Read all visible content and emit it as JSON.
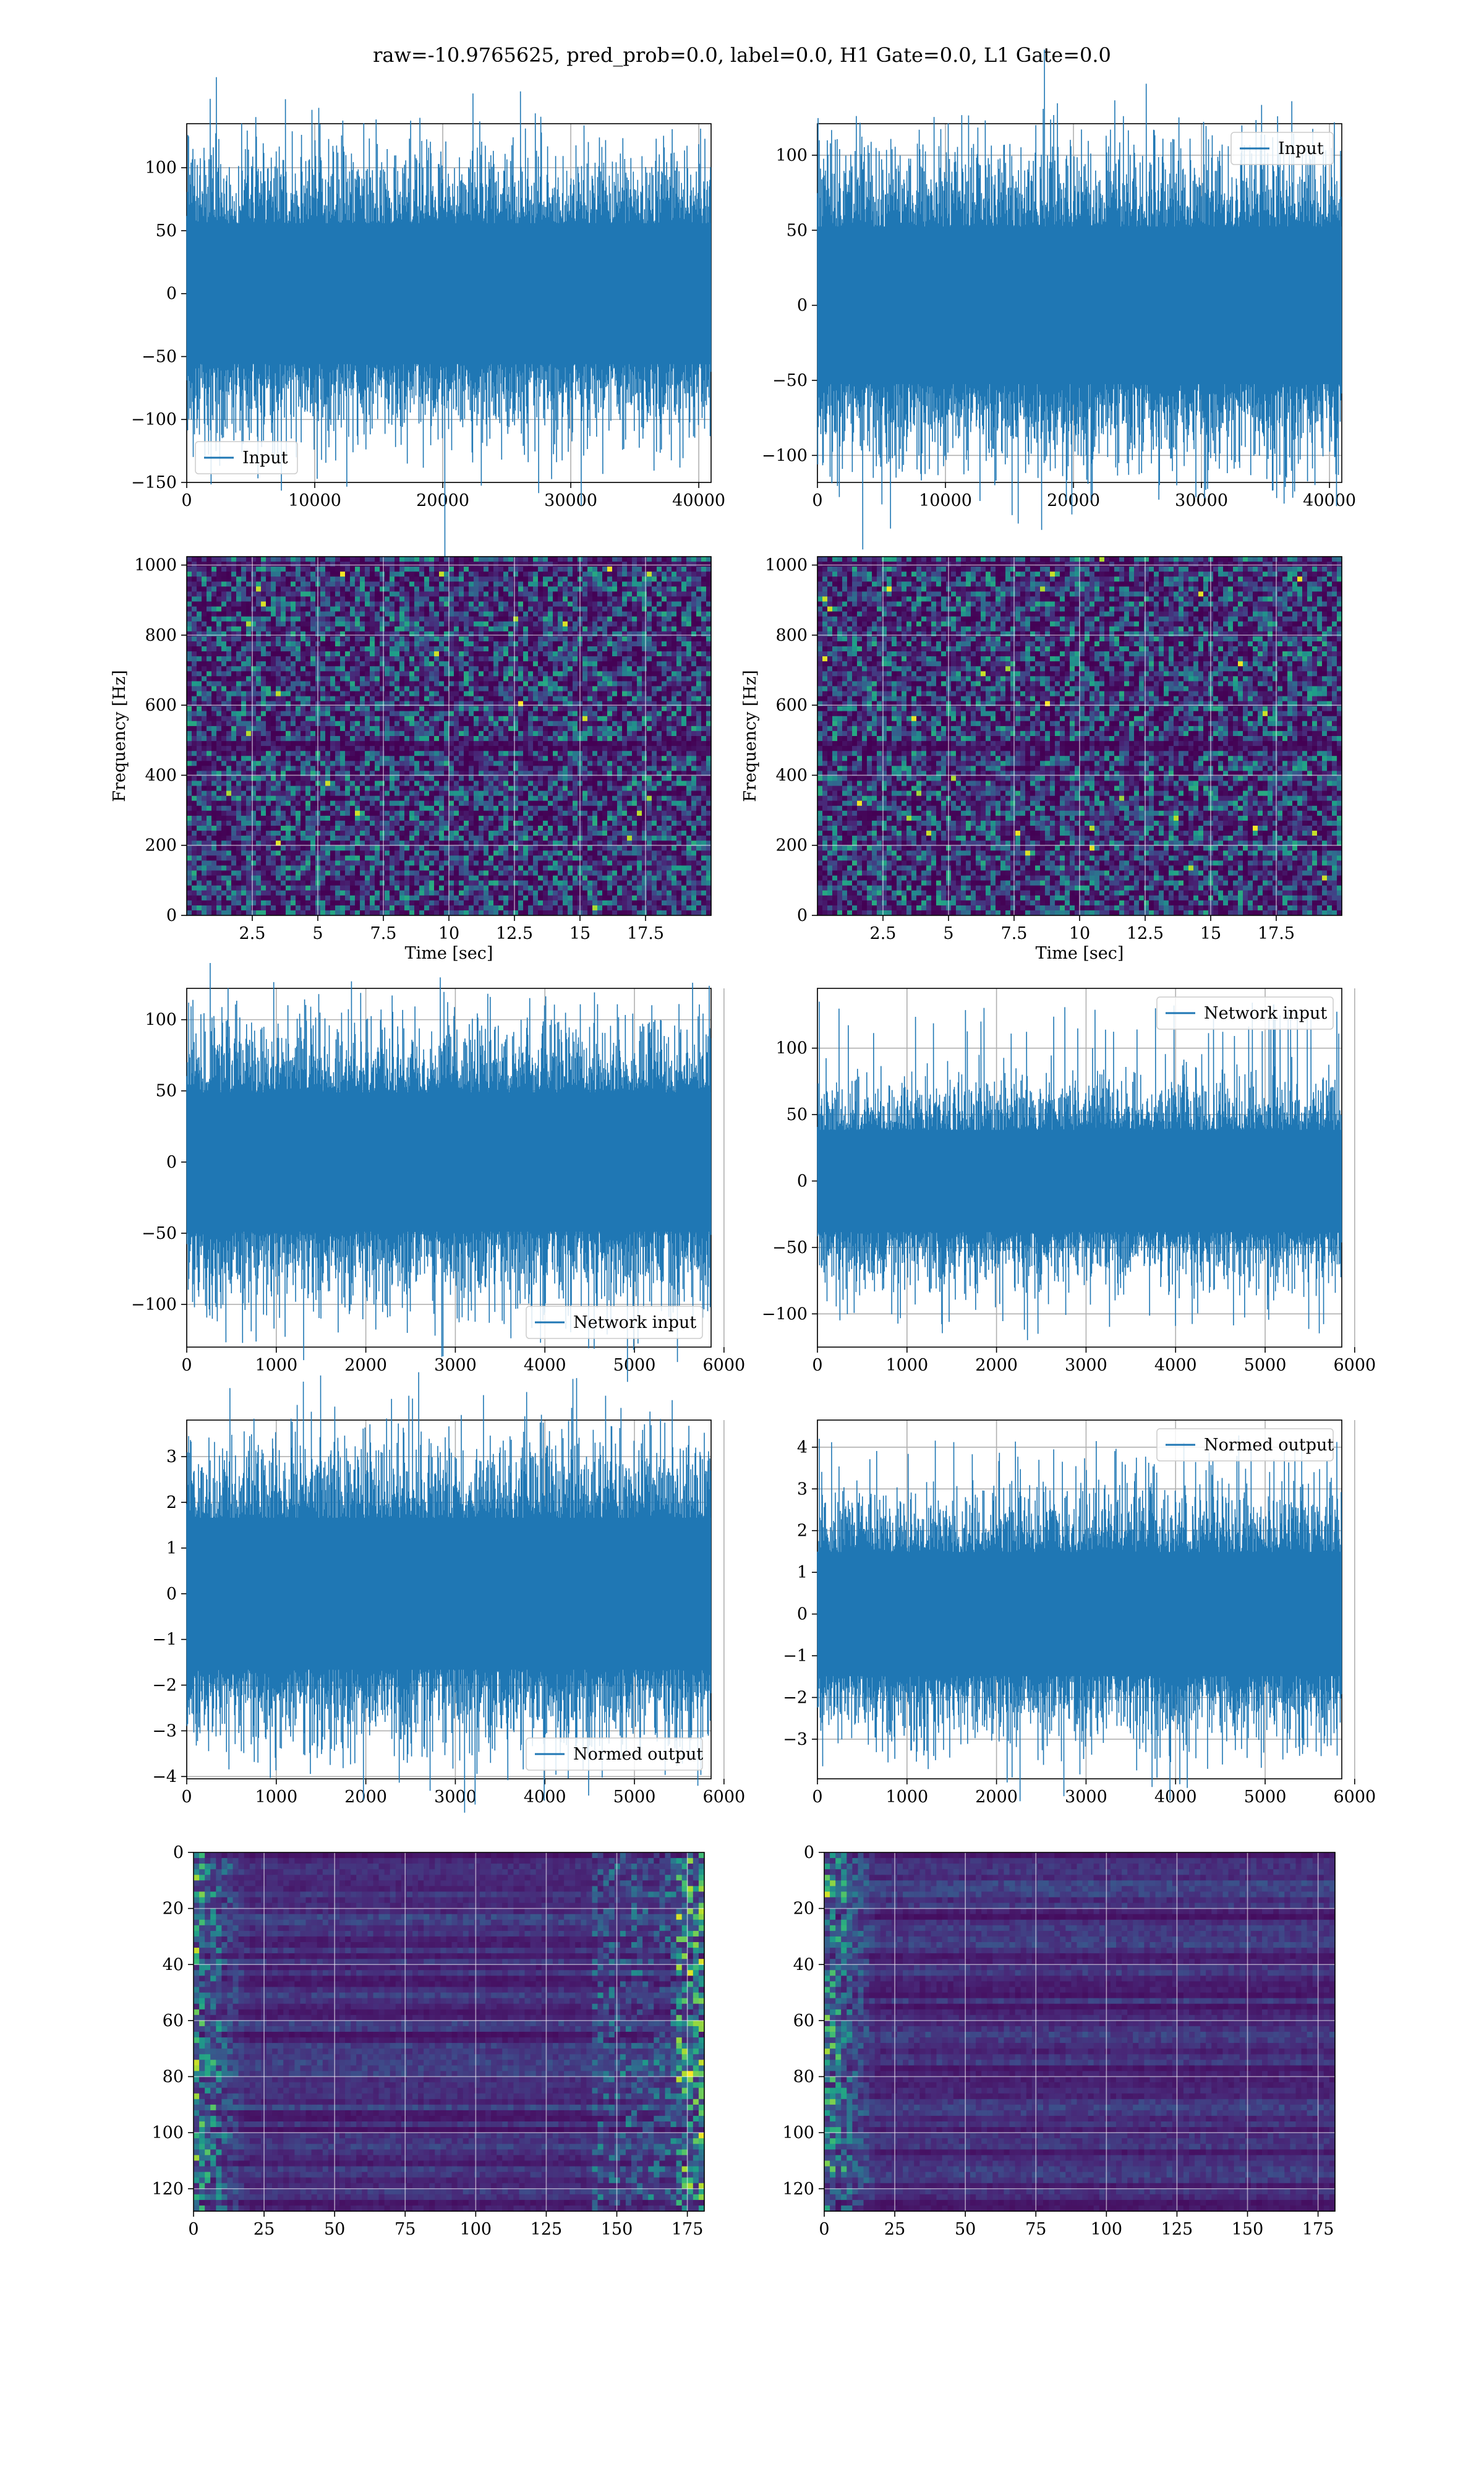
{
  "figure": {
    "suptitle": "raw=-10.9765625, pred_prob=0.0, label=0.0, H1 Gate=0.0, L1 Gate=0.0"
  },
  "chart_data": [
    {
      "id": "input_h1",
      "type": "line",
      "series": [
        {
          "name": "Input",
          "color": "#1f77b4"
        }
      ],
      "x_range": [
        0,
        40960
      ],
      "ylim": [
        -150,
        135
      ],
      "xticks": [
        0,
        10000,
        20000,
        30000,
        40000
      ],
      "yticks": [
        -150,
        -100,
        -50,
        0,
        50,
        100
      ],
      "grid": true,
      "legend": "lower-left",
      "signal": {
        "std": 32,
        "peak_max": 125,
        "peak_min": -135,
        "samples": 40960
      }
    },
    {
      "id": "input_l1",
      "type": "line",
      "series": [
        {
          "name": "Input",
          "color": "#1f77b4"
        }
      ],
      "x_range": [
        0,
        40960
      ],
      "ylim": [
        -118,
        121
      ],
      "xticks": [
        0,
        10000,
        20000,
        30000,
        40000
      ],
      "yticks": [
        -100,
        -50,
        0,
        50,
        100
      ],
      "grid": true,
      "legend": "upper-right",
      "signal": {
        "std": 30,
        "peak_max": 110,
        "peak_min": -115,
        "samples": 40960
      }
    },
    {
      "id": "spectrogram_h1",
      "type": "heatmap",
      "xlabel": "Time [sec]",
      "ylabel": "Frequency [Hz]",
      "xlim": [
        0,
        20
      ],
      "ylim": [
        0,
        1024
      ],
      "xticks": [
        2.5,
        5.0,
        7.5,
        10.0,
        12.5,
        15.0,
        17.5
      ],
      "yticks": [
        0,
        200,
        400,
        600,
        800,
        1000
      ],
      "colormap": "viridis",
      "grid": true
    },
    {
      "id": "spectrogram_l1",
      "type": "heatmap",
      "xlabel": "Time [sec]",
      "ylabel": "Frequency [Hz]",
      "xlim": [
        0,
        20
      ],
      "ylim": [
        0,
        1024
      ],
      "xticks": [
        2.5,
        5.0,
        7.5,
        10.0,
        12.5,
        15.0,
        17.5
      ],
      "yticks": [
        0,
        200,
        400,
        600,
        800,
        1000
      ],
      "colormap": "viridis",
      "grid": true
    },
    {
      "id": "network_input_h1",
      "type": "line",
      "series": [
        {
          "name": "Network input",
          "color": "#1f77b4"
        }
      ],
      "x_range": [
        0,
        5856
      ],
      "ylim": [
        -130,
        122
      ],
      "xticks": [
        0,
        1000,
        2000,
        3000,
        4000,
        5000,
        6000
      ],
      "yticks": [
        -100,
        -50,
        0,
        50,
        100
      ],
      "grid": true,
      "legend": "lower-right",
      "signal": {
        "std": 28,
        "peak_max": 112,
        "peak_min": -120,
        "samples": 5856
      }
    },
    {
      "id": "network_input_l1",
      "type": "line",
      "series": [
        {
          "name": "Network input",
          "color": "#1f77b4"
        }
      ],
      "x_range": [
        0,
        5856
      ],
      "ylim": [
        -125,
        145
      ],
      "xticks": [
        0,
        1000,
        2000,
        3000,
        4000,
        5000,
        6000
      ],
      "yticks": [
        -100,
        -50,
        0,
        50,
        100
      ],
      "grid": true,
      "legend": "upper-right",
      "signal": {
        "std": 22,
        "peak_max": 135,
        "peak_min": -115,
        "samples": 5856
      }
    },
    {
      "id": "normed_output_h1",
      "type": "line",
      "series": [
        {
          "name": "Normed output",
          "color": "#1f77b4"
        }
      ],
      "x_range": [
        0,
        5856
      ],
      "ylim": [
        -4.05,
        3.8
      ],
      "xticks": [
        0,
        1000,
        2000,
        3000,
        4000,
        5000,
        6000
      ],
      "yticks": [
        -4,
        -3,
        -2,
        -1,
        0,
        1,
        2,
        3
      ],
      "grid": true,
      "legend": "lower-right",
      "signal": {
        "std": 0.95,
        "peak_max": 3.45,
        "peak_min": -3.7,
        "samples": 5856
      }
    },
    {
      "id": "normed_output_l1",
      "type": "line",
      "series": [
        {
          "name": "Normed output",
          "color": "#1f77b4"
        }
      ],
      "x_range": [
        0,
        5856
      ],
      "ylim": [
        -3.95,
        4.65
      ],
      "xticks": [
        0,
        1000,
        2000,
        3000,
        4000,
        5000,
        6000
      ],
      "yticks": [
        -3,
        -2,
        -1,
        0,
        1,
        2,
        3,
        4
      ],
      "grid": true,
      "legend": "upper-right",
      "signal": {
        "std": 0.85,
        "peak_max": 4.2,
        "peak_min": -3.5,
        "samples": 5856
      }
    },
    {
      "id": "feature_map_h1",
      "type": "heatmap",
      "xlim": [
        0,
        181
      ],
      "ylim": [
        128,
        0
      ],
      "xticks": [
        0,
        25,
        50,
        75,
        100,
        125,
        150,
        175
      ],
      "yticks": [
        0,
        20,
        40,
        60,
        80,
        100,
        120
      ],
      "colormap": "viridis",
      "grid": true
    },
    {
      "id": "feature_map_l1",
      "type": "heatmap",
      "xlim": [
        0,
        181
      ],
      "ylim": [
        128,
        0
      ],
      "xticks": [
        0,
        25,
        50,
        75,
        100,
        125,
        150,
        175
      ],
      "yticks": [
        0,
        20,
        40,
        60,
        80,
        100,
        120
      ],
      "colormap": "viridis",
      "grid": true
    }
  ]
}
